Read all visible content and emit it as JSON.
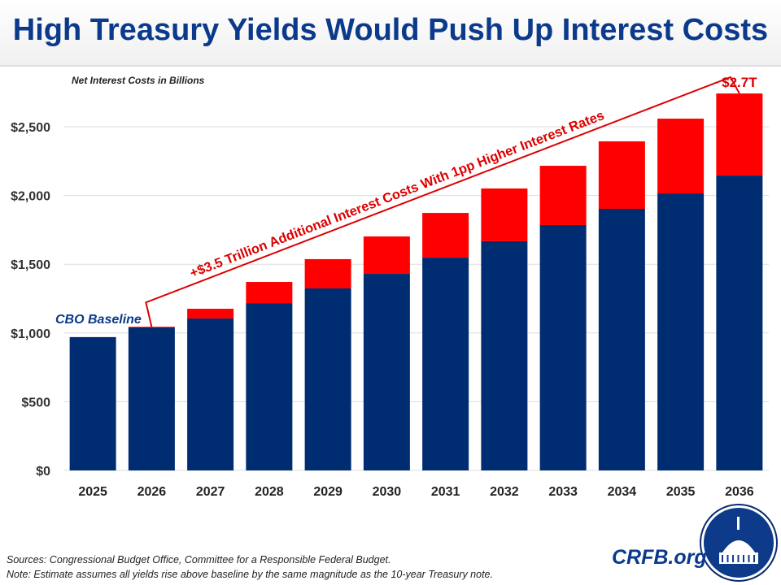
{
  "title": "High Treasury Yields Would Push Up Interest Costs",
  "chart_data": {
    "type": "bar",
    "stacked": true,
    "subtitle": "Net Interest Costs in Billions",
    "categories": [
      "2025",
      "2026",
      "2027",
      "2028",
      "2029",
      "2030",
      "2031",
      "2032",
      "2033",
      "2034",
      "2035",
      "2036"
    ],
    "series": [
      {
        "name": "CBO Baseline",
        "color": "#002d72",
        "values": [
          970,
          1040,
          1105,
          1217,
          1324,
          1430,
          1548,
          1667,
          1785,
          1903,
          2015,
          2145
        ]
      },
      {
        "color": "#ff0000",
        "values": [
          0,
          5,
          71,
          154,
          213,
          272,
          325,
          384,
          431,
          491,
          544,
          597
        ]
      }
    ],
    "ylim": [
      0,
      2750
    ],
    "yticks": [
      0,
      500,
      1000,
      1500,
      2000,
      2500
    ],
    "ytick_labels": [
      "$0",
      "$500",
      "$1,000",
      "$1,500",
      "$2,000",
      "$2,500"
    ],
    "grid": true,
    "annotations": {
      "bracket": "+$3.5 Trillion Additional Interest Costs With 1pp Higher Interest Rates",
      "last_total": "$2.7T",
      "baseline_label": "CBO Baseline"
    }
  },
  "footer": {
    "sources": "Sources: Congressional Budget Office, Committee for a Responsible Federal Budget.",
    "note": "Note: Estimate assumes all yields rise above baseline by the same magnitude as the 10-year Treasury note.",
    "site": "CRFB.org"
  }
}
